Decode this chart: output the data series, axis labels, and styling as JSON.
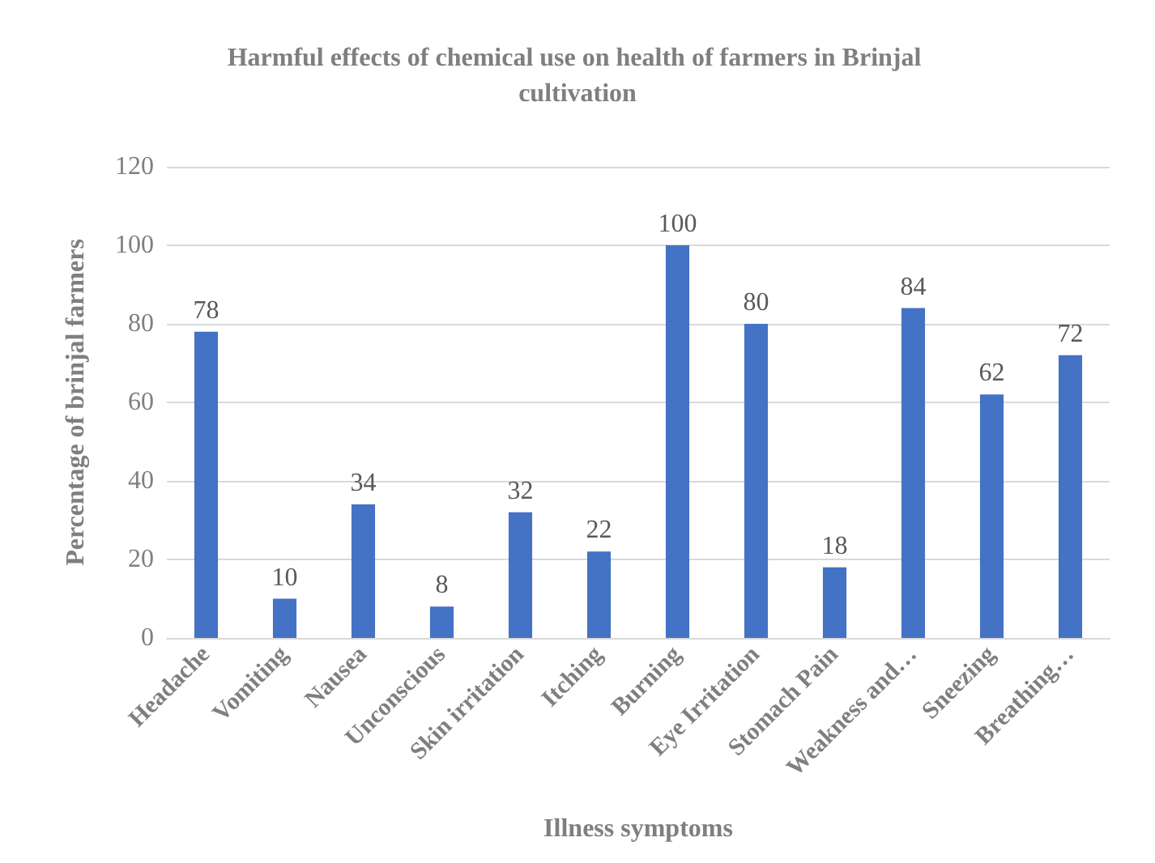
{
  "chart_data": {
    "type": "bar",
    "title": "Harmful effects of chemical use on health of farmers in Brinjal cultivation",
    "xlabel": "Illness symptoms",
    "ylabel": "Percentage of brinjal farmers",
    "categories": [
      "Headache",
      "Vomiting",
      "Nausea",
      "Unconscious",
      "Skin irritation",
      "Itching",
      "Burning",
      "Eye Irritation",
      "Stomach Pain",
      "Weakness and…",
      "Sneezing",
      "Breathing…"
    ],
    "values": [
      78,
      10,
      34,
      8,
      32,
      22,
      100,
      80,
      18,
      84,
      62,
      72
    ],
    "color": "#4472c4",
    "ylim": [
      0,
      120
    ],
    "yticks": [
      0,
      20,
      40,
      60,
      80,
      100,
      120
    ],
    "grid": "y",
    "data_labels": true
  }
}
